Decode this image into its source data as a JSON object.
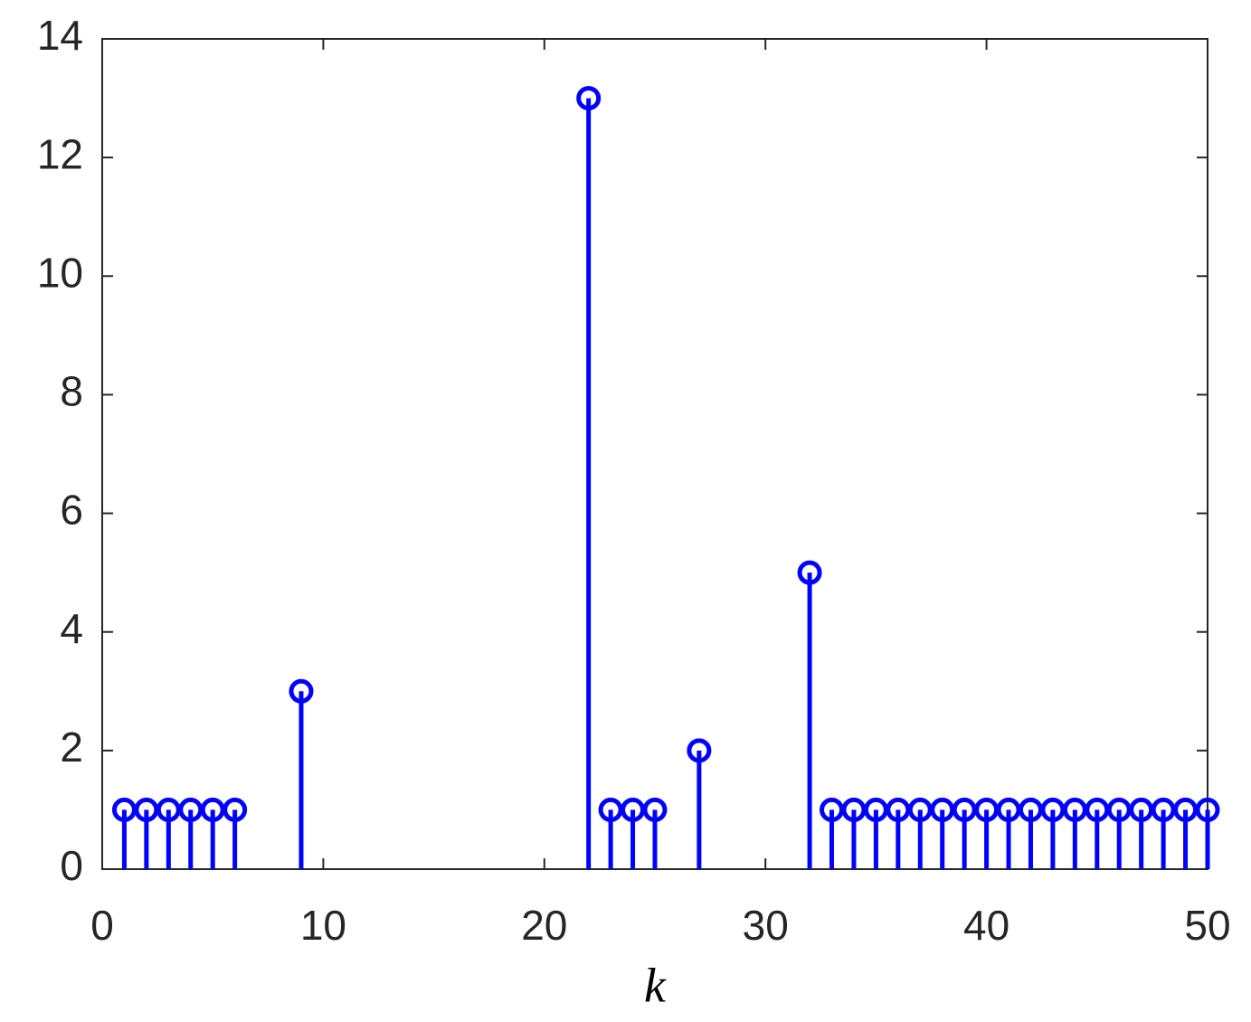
{
  "chart_data": {
    "type": "stem",
    "xlabel": "k",
    "x": [
      1,
      2,
      3,
      4,
      5,
      6,
      9,
      22,
      23,
      24,
      25,
      27,
      32,
      33,
      34,
      35,
      36,
      37,
      38,
      39,
      40,
      41,
      42,
      43,
      44,
      45,
      46,
      47,
      48,
      49,
      50
    ],
    "values": [
      1,
      1,
      1,
      1,
      1,
      1,
      3,
      13,
      1,
      1,
      1,
      2,
      5,
      1,
      1,
      1,
      1,
      1,
      1,
      1,
      1,
      1,
      1,
      1,
      1,
      1,
      1,
      1,
      1,
      1,
      1
    ],
    "color": "#0000ff",
    "xlim": [
      0,
      50
    ],
    "xticks": [
      0,
      10,
      20,
      30,
      40,
      50
    ],
    "ylim": [
      0,
      14
    ],
    "yticks": [
      0,
      2,
      4,
      6,
      8,
      10,
      12,
      14
    ]
  }
}
